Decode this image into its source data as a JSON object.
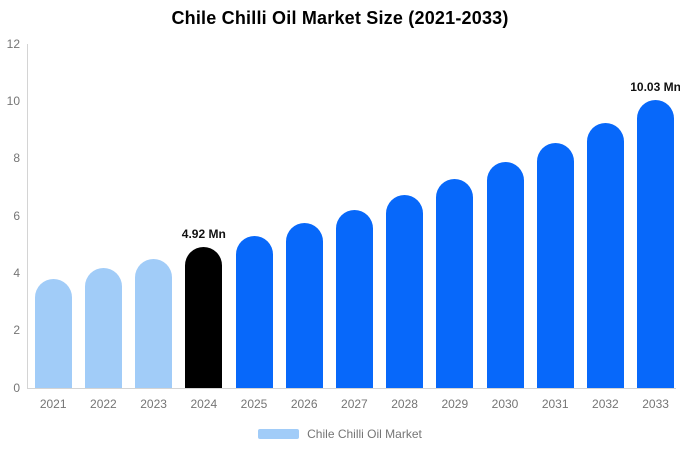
{
  "chart_data": {
    "type": "bar",
    "title": "Chile Chilli Oil Market Size (2021-2033)",
    "categories": [
      "2021",
      "2022",
      "2023",
      "2024",
      "2025",
      "2026",
      "2027",
      "2028",
      "2029",
      "2030",
      "2031",
      "2032",
      "2033"
    ],
    "series": [
      {
        "name": "Chile Chilli Oil Market",
        "values": [
          3.8,
          4.2,
          4.5,
          4.92,
          5.3,
          5.75,
          6.2,
          6.75,
          7.3,
          7.9,
          8.55,
          9.25,
          10.03
        ],
        "point_colors": [
          "#a1ccf8",
          "#a1ccf8",
          "#a1ccf8",
          "#000000",
          "#0768fa",
          "#0768fa",
          "#0768fa",
          "#0768fa",
          "#0768fa",
          "#0768fa",
          "#0768fa",
          "#0768fa",
          "#0768fa"
        ]
      }
    ],
    "xlabel": "",
    "ylabel": "",
    "ylim": [
      0,
      12
    ],
    "yticks": [
      0,
      2,
      4,
      6,
      8,
      10,
      12
    ],
    "grid": false,
    "legend_position": "bottom",
    "annotations": [
      {
        "index": 3,
        "text": "4.92 Mn"
      },
      {
        "index": 12,
        "text": "10.03 Mn"
      }
    ]
  },
  "legend": {
    "label": "Chile Chilli Oil Market",
    "swatch_color": "#a1ccf8"
  },
  "colors": {
    "past_bar": "#a1ccf8",
    "highlight_bar": "#000000",
    "forecast_bar": "#0768fa",
    "axis_line": "#d4d4d4",
    "tick_label": "#757575",
    "annotation_text": "#111111"
  }
}
